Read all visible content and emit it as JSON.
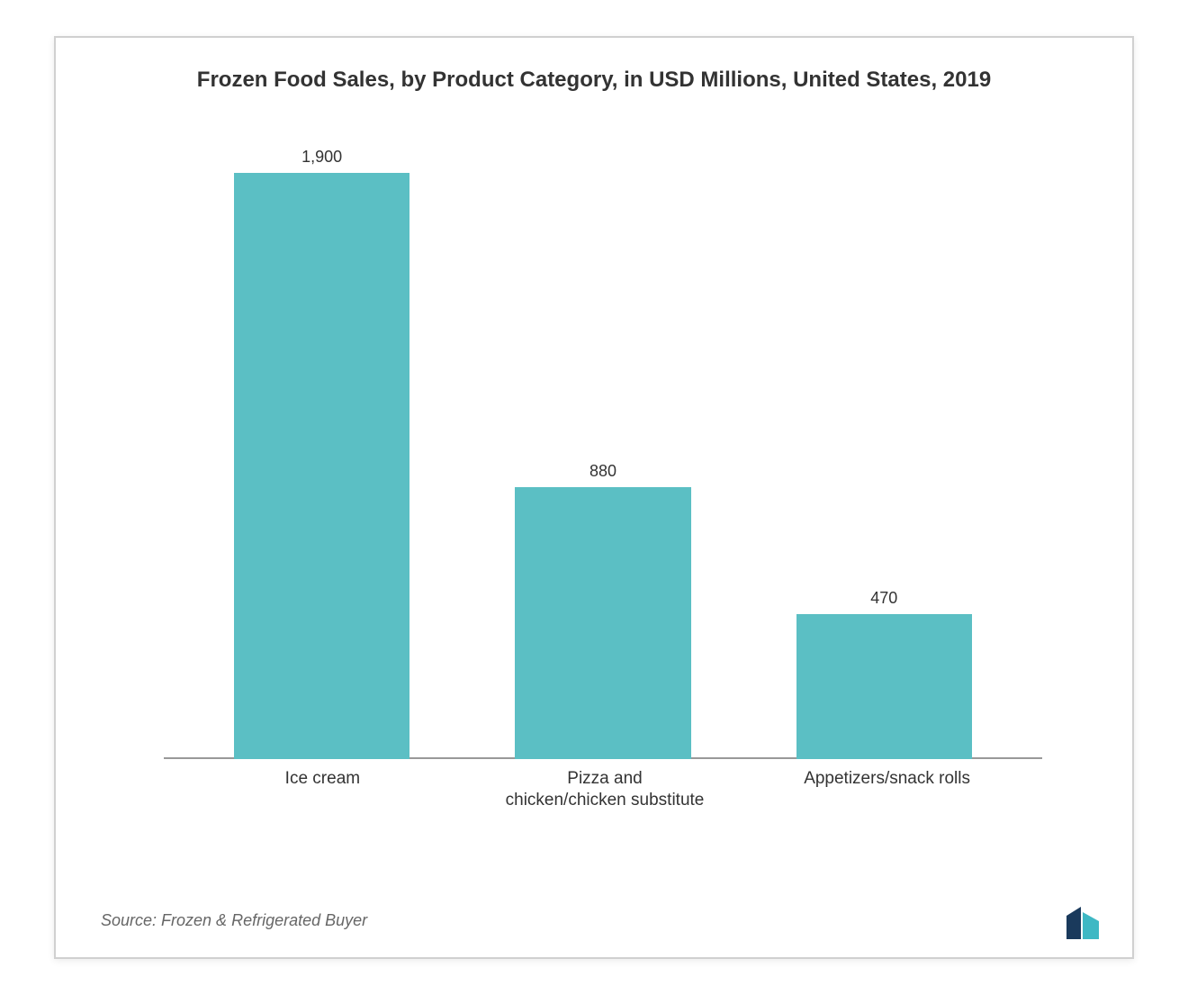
{
  "chart": {
    "type": "bar",
    "title": "Frozen Food Sales, by Product Category, in USD Millions, United States, 2019",
    "categories": [
      "Ice cream",
      "Pizza and\nchicken/chicken substitute",
      "Appetizers/snack rolls"
    ],
    "values": [
      1900,
      880,
      470
    ],
    "bar_color": "#5bbfc4",
    "bar_width_pct": 20,
    "bar_positions_pct": [
      8,
      40,
      72
    ],
    "max_value": 1900,
    "background_color": "#ffffff",
    "border_color": "#d0d0d0",
    "baseline_color": "#999999",
    "title_fontsize": 24,
    "label_fontsize": 18,
    "category_fontsize": 19,
    "text_color": "#333333"
  },
  "source": "Source: Frozen & Refrigerated Buyer",
  "logo": {
    "color1": "#1a3a5c",
    "color2": "#3eb8c4"
  }
}
